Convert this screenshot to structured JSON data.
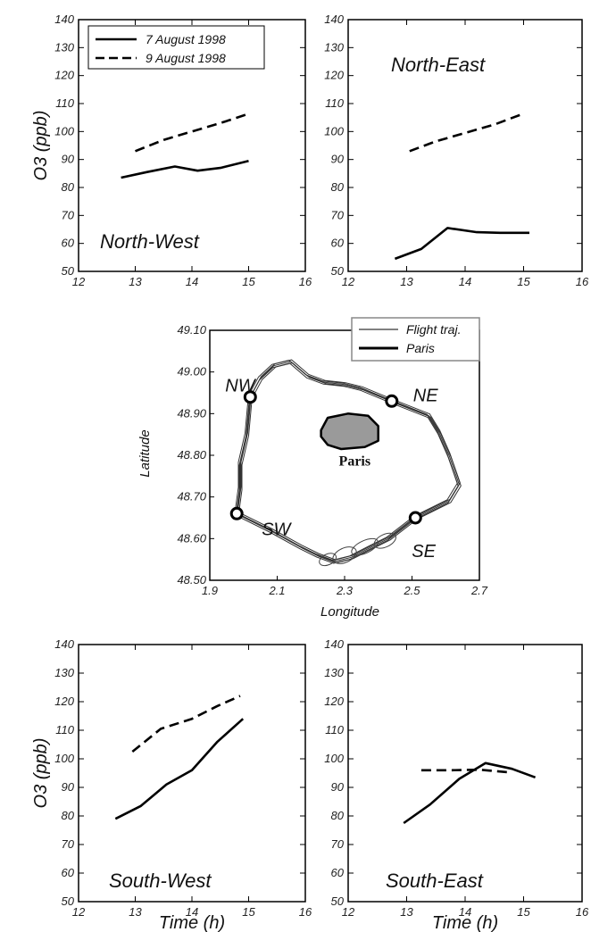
{
  "chart_data": [
    {
      "id": "nw",
      "type": "line",
      "region_label": "North-West",
      "ylabel": "O3 (ppb)",
      "xlabel": "",
      "xlim": [
        12,
        16
      ],
      "ylim": [
        50,
        140
      ],
      "xticks": [
        "12",
        "13",
        "14",
        "15",
        "16"
      ],
      "yticks": [
        "50",
        "60",
        "70",
        "80",
        "90",
        "100",
        "110",
        "120",
        "130",
        "140"
      ],
      "legend": {
        "placement": "top-left",
        "entries": [
          "7 August 1998",
          "9 August 1998"
        ]
      },
      "series": [
        {
          "name": "7 August 1998",
          "style": "solid",
          "points": [
            [
              12.75,
              83.5
            ],
            [
              13.2,
              85.5
            ],
            [
              13.7,
              87.5
            ],
            [
              14.1,
              86.0
            ],
            [
              14.5,
              87.0
            ],
            [
              15.0,
              89.5
            ]
          ]
        },
        {
          "name": "9 August 1998",
          "style": "dashed",
          "points": [
            [
              13.0,
              93.0
            ],
            [
              13.5,
              97.0
            ],
            [
              14.0,
              100.0
            ],
            [
              14.5,
              103.0
            ],
            [
              14.95,
              106.0
            ]
          ]
        }
      ]
    },
    {
      "id": "ne",
      "type": "line",
      "region_label": "North-East",
      "ylabel": "",
      "xlabel": "",
      "xlim": [
        12,
        16
      ],
      "ylim": [
        50,
        140
      ],
      "xticks": [
        "12",
        "13",
        "14",
        "15",
        "16"
      ],
      "yticks": [
        "50",
        "60",
        "70",
        "80",
        "90",
        "100",
        "110",
        "120",
        "130",
        "140"
      ],
      "series": [
        {
          "name": "7 August 1998",
          "style": "solid",
          "points": [
            [
              12.8,
              54.5
            ],
            [
              13.25,
              58.0
            ],
            [
              13.7,
              65.5
            ],
            [
              14.2,
              64.0
            ],
            [
              14.6,
              63.8
            ],
            [
              15.1,
              63.8
            ]
          ]
        },
        {
          "name": "9 August 1998",
          "style": "dashed",
          "points": [
            [
              13.05,
              93.0
            ],
            [
              13.5,
              96.5
            ],
            [
              14.0,
              99.5
            ],
            [
              14.5,
              102.5
            ],
            [
              14.95,
              106.0
            ]
          ]
        }
      ]
    },
    {
      "id": "sw",
      "type": "line",
      "region_label": "South-West",
      "ylabel": "O3 (ppb)",
      "xlabel": "Time (h)",
      "xlim": [
        12,
        16
      ],
      "ylim": [
        50,
        140
      ],
      "xticks": [
        "12",
        "13",
        "14",
        "15",
        "16"
      ],
      "yticks": [
        "50",
        "60",
        "70",
        "80",
        "90",
        "100",
        "110",
        "120",
        "130",
        "140"
      ],
      "series": [
        {
          "name": "7 August 1998",
          "style": "solid",
          "points": [
            [
              12.65,
              79.0
            ],
            [
              13.1,
              83.5
            ],
            [
              13.55,
              91.0
            ],
            [
              14.0,
              96.0
            ],
            [
              14.45,
              106.0
            ],
            [
              14.9,
              114.0
            ]
          ]
        },
        {
          "name": "9 August 1998",
          "style": "dashed",
          "points": [
            [
              12.95,
              102.5
            ],
            [
              13.45,
              110.5
            ],
            [
              14.0,
              114.0
            ],
            [
              14.45,
              118.5
            ],
            [
              14.85,
              122.0
            ]
          ]
        }
      ]
    },
    {
      "id": "se",
      "type": "line",
      "region_label": "South-East",
      "ylabel": "",
      "xlabel": "Time (h)",
      "xlim": [
        12,
        16
      ],
      "ylim": [
        50,
        140
      ],
      "xticks": [
        "12",
        "13",
        "14",
        "15",
        "16"
      ],
      "yticks": [
        "50",
        "60",
        "70",
        "80",
        "90",
        "100",
        "110",
        "120",
        "130",
        "140"
      ],
      "series": [
        {
          "name": "7 August 1998",
          "style": "solid",
          "points": [
            [
              12.95,
              77.5
            ],
            [
              13.4,
              84.0
            ],
            [
              13.9,
              93.0
            ],
            [
              14.35,
              98.5
            ],
            [
              14.8,
              96.5
            ],
            [
              15.2,
              93.5
            ]
          ]
        },
        {
          "name": "9 August 1998",
          "style": "dashed",
          "points": [
            [
              13.25,
              96.0
            ],
            [
              13.75,
              96.0
            ],
            [
              14.25,
              96.2
            ],
            [
              14.8,
              95.2
            ]
          ]
        }
      ]
    },
    {
      "id": "map",
      "type": "line",
      "xlabel": "Longitude",
      "ylabel": "Latitude",
      "xlim": [
        1.9,
        2.7
      ],
      "ylim": [
        48.5,
        49.1
      ],
      "xticks": [
        "1.9",
        "2.1",
        "2.3",
        "2.5",
        "2.7"
      ],
      "yticks": [
        "48.50",
        "48.60",
        "48.70",
        "48.80",
        "48.90",
        "49.00",
        "49.10"
      ],
      "legend": {
        "placement": "top-right",
        "entries": [
          "Flight traj.",
          "Paris"
        ]
      },
      "paris_label": "Paris",
      "trajectory": [
        [
          2.02,
          48.94
        ],
        [
          2.05,
          48.985
        ],
        [
          2.09,
          49.015
        ],
        [
          2.14,
          49.025
        ],
        [
          2.19,
          48.99
        ],
        [
          2.24,
          48.975
        ],
        [
          2.3,
          48.97
        ],
        [
          2.35,
          48.96
        ],
        [
          2.44,
          48.93
        ],
        [
          2.55,
          48.895
        ],
        [
          2.58,
          48.855
        ],
        [
          2.61,
          48.8
        ],
        [
          2.64,
          48.73
        ],
        [
          2.61,
          48.69
        ],
        [
          2.51,
          48.65
        ],
        [
          2.43,
          48.6
        ],
        [
          2.38,
          48.58
        ],
        [
          2.32,
          48.555
        ],
        [
          2.27,
          48.545
        ],
        [
          2.22,
          48.56
        ],
        [
          2.17,
          48.58
        ],
        [
          2.08,
          48.62
        ],
        [
          1.98,
          48.66
        ],
        [
          1.99,
          48.72
        ],
        [
          1.99,
          48.78
        ],
        [
          2.01,
          48.85
        ],
        [
          2.02,
          48.94
        ]
      ],
      "paris_outline": [
        [
          2.23,
          48.86
        ],
        [
          2.25,
          48.89
        ],
        [
          2.31,
          48.9
        ],
        [
          2.37,
          48.895
        ],
        [
          2.4,
          48.87
        ],
        [
          2.4,
          48.835
        ],
        [
          2.36,
          48.82
        ],
        [
          2.29,
          48.815
        ],
        [
          2.25,
          48.825
        ],
        [
          2.23,
          48.845
        ],
        [
          2.23,
          48.86
        ]
      ],
      "sites": [
        {
          "name": "NW",
          "lon": 2.02,
          "lat": 48.94
        },
        {
          "name": "NE",
          "lon": 2.44,
          "lat": 48.93
        },
        {
          "name": "SW",
          "lon": 1.98,
          "lat": 48.66
        },
        {
          "name": "SE",
          "lon": 2.51,
          "lat": 48.65
        }
      ]
    }
  ]
}
